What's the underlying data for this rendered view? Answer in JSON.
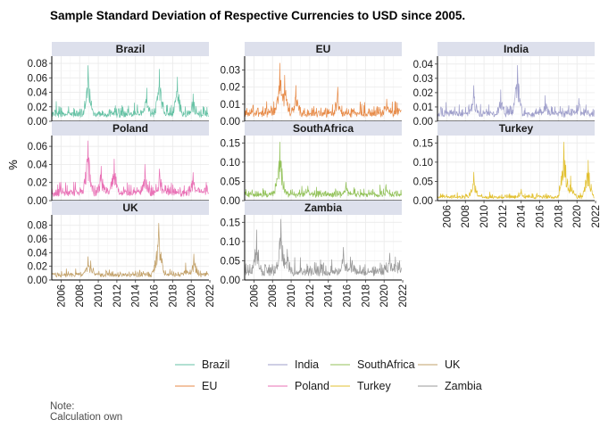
{
  "chart_data": {
    "type": "line",
    "title": "Sample Standard Deviation of Respective Currencies to USD since 2005.",
    "ylabel": "%",
    "xlabel": "",
    "x_ticks": [
      "2006",
      "2008",
      "2010",
      "2012",
      "2014",
      "2016",
      "2018",
      "2020",
      "2022"
    ],
    "x_range": [
      2005.0,
      2021.9
    ],
    "grid": true,
    "legend_position": "bottom",
    "panels": [
      {
        "name": "Brazil",
        "color": "#66C2A5",
        "ylim": [
          0,
          0.085
        ],
        "y_ticks": [
          "0.00",
          "0.02",
          "0.04",
          "0.06",
          "0.08"
        ],
        "y_values": [
          0,
          0.02,
          0.04,
          0.06,
          0.08
        ],
        "baseline": 0.012,
        "noise": 0.01,
        "peaks": [
          [
            2008.9,
            0.077
          ],
          [
            2015.2,
            0.046
          ],
          [
            2016.6,
            0.072
          ],
          [
            2018.5,
            0.061
          ],
          [
            2020.2,
            0.038
          ]
        ]
      },
      {
        "name": "EU",
        "color": "#E78A47",
        "ylim": [
          0,
          0.036
        ],
        "y_ticks": [
          "0.00",
          "0.01",
          "0.02",
          "0.03"
        ],
        "y_values": [
          0,
          0.01,
          0.02,
          0.03
        ],
        "baseline": 0.005,
        "noise": 0.005,
        "peaks": [
          [
            2008.8,
            0.034
          ],
          [
            2009.3,
            0.027
          ],
          [
            2010.5,
            0.021
          ],
          [
            2015.0,
            0.02
          ],
          [
            2020.3,
            0.013
          ]
        ]
      },
      {
        "name": "India",
        "color": "#9F9FCB",
        "ylim": [
          0,
          0.043
        ],
        "y_ticks": [
          "0.00",
          "0.01",
          "0.02",
          "0.03",
          "0.04"
        ],
        "y_values": [
          0,
          0.01,
          0.02,
          0.03,
          0.04
        ],
        "baseline": 0.006,
        "noise": 0.006,
        "peaks": [
          [
            2008.9,
            0.025
          ],
          [
            2011.8,
            0.022
          ],
          [
            2013.6,
            0.039
          ],
          [
            2016.6,
            0.018
          ],
          [
            2020.2,
            0.016
          ]
        ]
      },
      {
        "name": "Poland",
        "color": "#E972B6",
        "ylim": [
          0,
          0.068
        ],
        "y_ticks": [
          "0.00",
          "0.02",
          "0.04",
          "0.06"
        ],
        "y_values": [
          0,
          0.02,
          0.04,
          0.06
        ],
        "baseline": 0.01,
        "noise": 0.01,
        "peaks": [
          [
            2008.9,
            0.066
          ],
          [
            2010.3,
            0.038
          ],
          [
            2011.7,
            0.046
          ],
          [
            2015.0,
            0.04
          ],
          [
            2016.6,
            0.035
          ],
          [
            2020.2,
            0.031
          ]
        ]
      },
      {
        "name": "SouthAfrica",
        "color": "#93C25A",
        "ylim": [
          0,
          0.16
        ],
        "y_ticks": [
          "0.00",
          "0.05",
          "0.10",
          "0.15"
        ],
        "y_values": [
          0,
          0.05,
          0.1,
          0.15
        ],
        "baseline": 0.018,
        "noise": 0.014,
        "peaks": [
          [
            2008.8,
            0.152
          ],
          [
            2008.3,
            0.045
          ],
          [
            2011.8,
            0.038
          ],
          [
            2015.9,
            0.048
          ],
          [
            2020.2,
            0.042
          ]
        ]
      },
      {
        "name": "Turkey",
        "color": "#E2C030",
        "ylim": [
          0,
          0.16
        ],
        "y_ticks": [
          "0.00",
          "0.05",
          "0.10",
          "0.15"
        ],
        "y_values": [
          0,
          0.05,
          0.1,
          0.15
        ],
        "baseline": 0.01,
        "noise": 0.01,
        "peaks": [
          [
            2008.9,
            0.074
          ],
          [
            2018.6,
            0.152
          ],
          [
            2019.3,
            0.064
          ],
          [
            2021.2,
            0.105
          ],
          [
            2014.0,
            0.03
          ]
        ]
      },
      {
        "name": "UK",
        "color": "#C2A068",
        "ylim": [
          0,
          0.09
        ],
        "y_ticks": [
          "0.00",
          "0.02",
          "0.04",
          "0.06",
          "0.08"
        ],
        "y_values": [
          0,
          0.02,
          0.04,
          0.06,
          0.08
        ],
        "baseline": 0.009,
        "noise": 0.007,
        "peaks": [
          [
            2008.9,
            0.034
          ],
          [
            2009.2,
            0.028
          ],
          [
            2016.5,
            0.083
          ],
          [
            2020.3,
            0.038
          ],
          [
            2019.4,
            0.025
          ]
        ]
      },
      {
        "name": "Zambia",
        "color": "#999999",
        "ylim": [
          0,
          0.16
        ],
        "y_ticks": [
          "0.00",
          "0.05",
          "0.10",
          "0.15"
        ],
        "y_values": [
          0,
          0.05,
          0.1,
          0.15
        ],
        "baseline": 0.022,
        "noise": 0.024,
        "peaks": [
          [
            2006.3,
            0.13
          ],
          [
            2008.9,
            0.158
          ],
          [
            2009.6,
            0.08
          ],
          [
            2015.6,
            0.085
          ],
          [
            2016.4,
            0.06
          ],
          [
            2020.6,
            0.07
          ],
          [
            2021.2,
            0.06
          ]
        ]
      }
    ],
    "legend": [
      {
        "name": "Brazil",
        "color": "#66C2A5"
      },
      {
        "name": "India",
        "color": "#9F9FCB"
      },
      {
        "name": "SouthAfrica",
        "color": "#93C25A"
      },
      {
        "name": "UK",
        "color": "#C2A068"
      },
      {
        "name": "EU",
        "color": "#E78A47"
      },
      {
        "name": "Poland",
        "color": "#E972B6"
      },
      {
        "name": "Turkey",
        "color": "#E2C030"
      },
      {
        "name": "Zambia",
        "color": "#999999"
      }
    ],
    "caption_lines": [
      "Note:",
      "Calculation own"
    ]
  }
}
